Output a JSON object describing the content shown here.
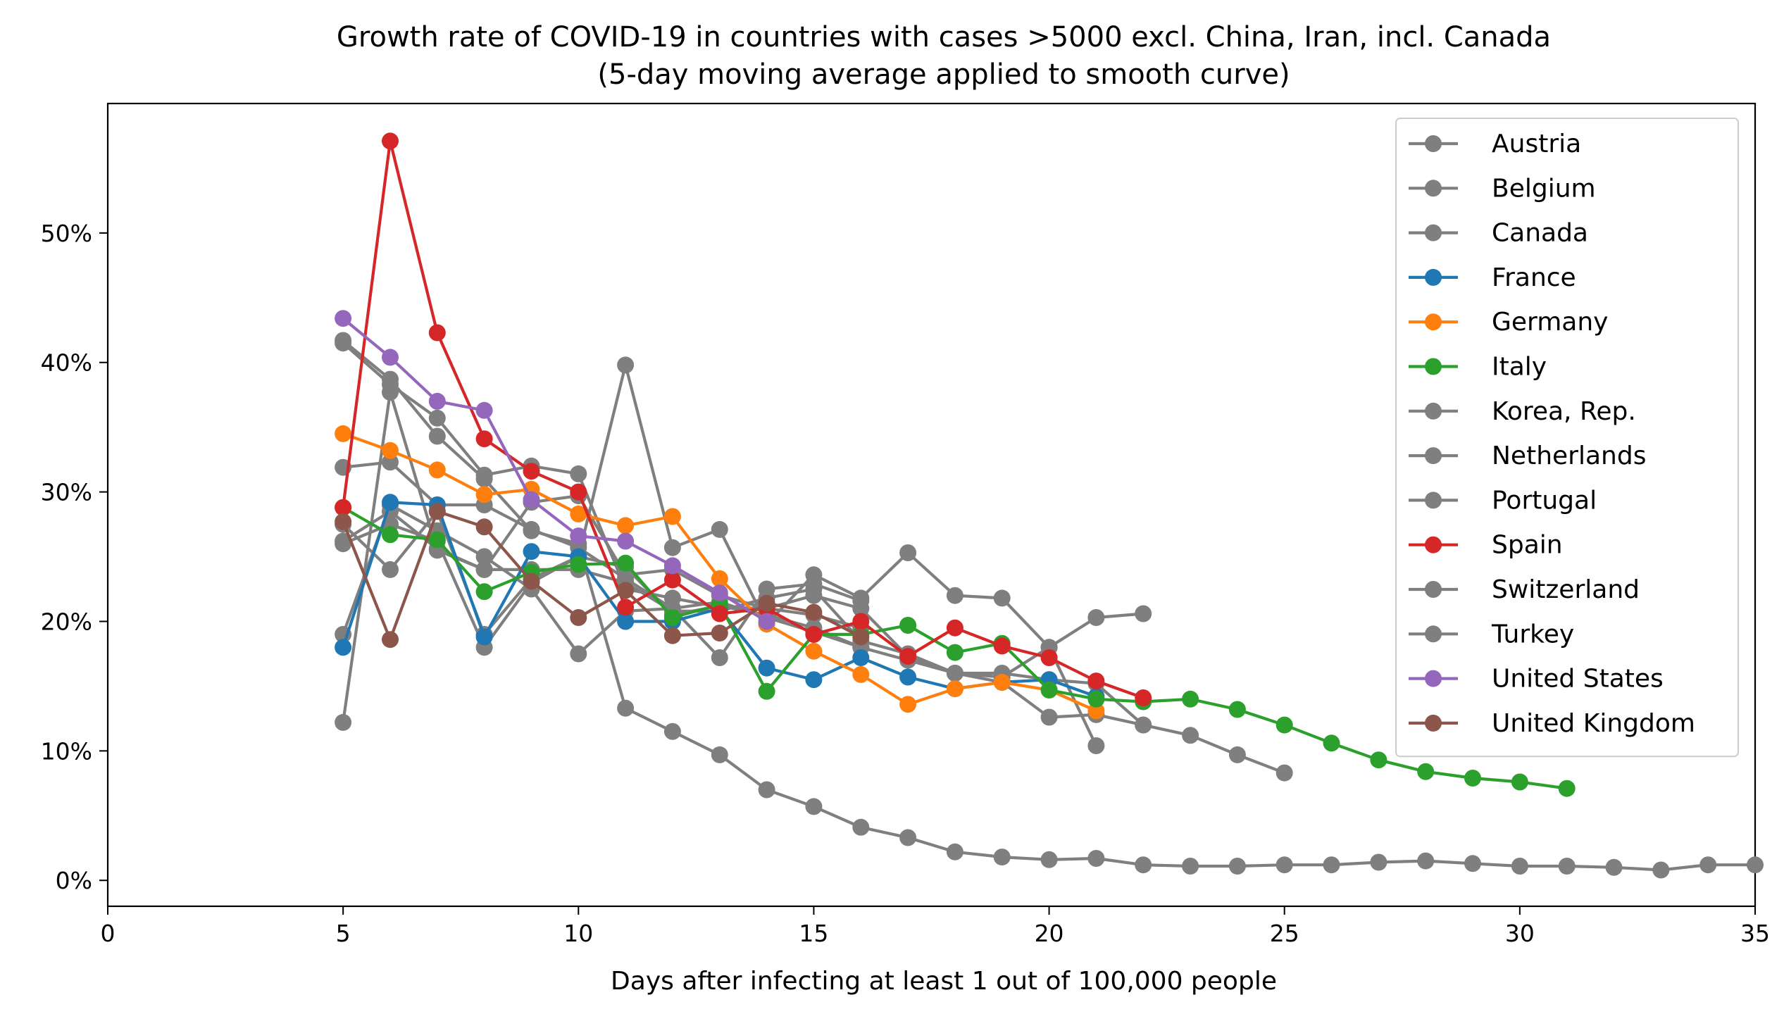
{
  "chart_data": {
    "type": "line",
    "title_line1": "Growth rate of COVID-19 in countries with cases >5000 excl. China, Iran, incl. Canada",
    "title_line2": "(5-day moving average applied to smooth curve)",
    "xlabel": "Days after infecting at least 1 out of 100,000 people",
    "ylabel": "",
    "xlim": [
      0,
      35
    ],
    "ylim": [
      -0.02,
      0.6
    ],
    "x_ticks": [
      0,
      5,
      10,
      15,
      20,
      25,
      30,
      35
    ],
    "x_tick_labels": [
      "0",
      "5",
      "10",
      "15",
      "20",
      "25",
      "30",
      "35"
    ],
    "y_ticks": [
      0,
      0.1,
      0.2,
      0.3,
      0.4,
      0.5
    ],
    "y_tick_labels": [
      "0%",
      "10%",
      "20%",
      "30%",
      "40%",
      "50%"
    ],
    "grid": false,
    "legend_position": "top-right",
    "series": [
      {
        "name": "Austria",
        "color": "#7f7f7f",
        "x": [
          5,
          6,
          7,
          8,
          9,
          10,
          11,
          12,
          13,
          14,
          15,
          16
        ],
        "y": [
          0.19,
          0.29,
          0.27,
          0.25,
          0.225,
          0.175,
          0.208,
          0.21,
          0.172,
          0.225,
          0.229,
          0.216
        ]
      },
      {
        "name": "Belgium",
        "color": "#7f7f7f",
        "x": [
          5,
          6,
          7,
          8,
          9,
          10,
          11,
          12,
          13,
          14,
          15,
          16,
          17,
          18,
          19,
          20,
          21
        ],
        "y": [
          0.26,
          0.275,
          0.262,
          0.18,
          0.23,
          0.25,
          0.398,
          0.257,
          0.271,
          0.198,
          0.236,
          0.218,
          0.253,
          0.22,
          0.218,
          0.18,
          0.104
        ]
      },
      {
        "name": "Canada",
        "color": "#7f7f7f",
        "x": [
          5,
          6,
          7,
          8,
          9,
          10,
          11,
          12,
          13,
          14,
          15,
          16,
          17,
          18,
          19,
          20,
          21,
          22
        ],
        "y": [
          0.122,
          0.377,
          0.255,
          0.24,
          0.24,
          0.24,
          0.23,
          0.208,
          0.208,
          0.218,
          0.225,
          0.185,
          0.175,
          0.16,
          0.16,
          0.155,
          0.152,
          0.12
        ]
      },
      {
        "name": "France",
        "color": "#1f77b4",
        "x": [
          5,
          6,
          7,
          8,
          9,
          10,
          11,
          12,
          13,
          14,
          15,
          16,
          17,
          18,
          19,
          20,
          21
        ],
        "y": [
          0.18,
          0.292,
          0.29,
          0.188,
          0.254,
          0.25,
          0.2,
          0.2,
          0.21,
          0.164,
          0.155,
          0.172,
          0.157,
          0.148,
          0.153,
          0.155,
          0.142
        ]
      },
      {
        "name": "Germany",
        "color": "#ff7f0e",
        "x": [
          5,
          6,
          7,
          8,
          9,
          10,
          11,
          12,
          13,
          14,
          15,
          16,
          17,
          18,
          19,
          20,
          21
        ],
        "y": [
          0.345,
          0.332,
          0.317,
          0.298,
          0.302,
          0.283,
          0.274,
          0.281,
          0.233,
          0.198,
          0.177,
          0.159,
          0.136,
          0.148,
          0.153,
          0.147,
          0.131
        ]
      },
      {
        "name": "Italy",
        "color": "#2ca02c",
        "x": [
          5,
          6,
          7,
          8,
          9,
          10,
          11,
          12,
          13,
          14,
          15,
          16,
          17,
          18,
          19,
          20,
          21,
          22,
          23,
          24,
          25,
          26,
          27,
          28,
          29,
          30,
          31
        ],
        "y": [
          0.288,
          0.267,
          0.263,
          0.223,
          0.238,
          0.244,
          0.245,
          0.203,
          0.213,
          0.146,
          0.19,
          0.19,
          0.197,
          0.176,
          0.183,
          0.147,
          0.14,
          0.138,
          0.14,
          0.132,
          0.12,
          0.106,
          0.093,
          0.084,
          0.079,
          0.076,
          0.071
        ]
      },
      {
        "name": "Korea, Rep.",
        "color": "#7f7f7f",
        "x": [
          5,
          6,
          7,
          8,
          9,
          10,
          11,
          12,
          13,
          14,
          15,
          16,
          17,
          18,
          19,
          20,
          21,
          22,
          23,
          24,
          25,
          26,
          27,
          28,
          29,
          30,
          31,
          32,
          33,
          34,
          35
        ],
        "y": [
          0.417,
          0.387,
          0.343,
          0.31,
          0.27,
          0.26,
          0.133,
          0.115,
          0.097,
          0.07,
          0.057,
          0.041,
          0.033,
          0.022,
          0.018,
          0.016,
          0.017,
          0.012,
          0.011,
          0.011,
          0.012,
          0.012,
          0.014,
          0.015,
          0.013,
          0.011,
          0.011,
          0.01,
          0.008,
          0.012,
          0.012
        ]
      },
      {
        "name": "Netherlands",
        "color": "#7f7f7f",
        "x": [
          5,
          6,
          7,
          8,
          9,
          10,
          11,
          12,
          13,
          14,
          15,
          16,
          17,
          18,
          19,
          20,
          21,
          22
        ],
        "y": [
          0.415,
          0.383,
          0.357,
          0.313,
          0.32,
          0.314,
          0.225,
          0.218,
          0.211,
          0.21,
          0.22,
          0.21,
          0.173,
          0.16,
          0.157,
          0.18,
          0.203,
          0.206
        ]
      },
      {
        "name": "Portugal",
        "color": "#7f7f7f",
        "x": [
          5,
          6,
          7,
          8,
          9,
          10,
          11,
          12,
          13,
          14,
          15,
          16,
          17,
          18,
          19,
          20,
          21,
          22,
          23,
          24,
          25
        ],
        "y": [
          0.319,
          0.323,
          0.29,
          0.29,
          0.271,
          0.257,
          0.233,
          0.21,
          0.215,
          0.203,
          0.192,
          0.18,
          0.17,
          0.16,
          0.153,
          0.126,
          0.128,
          0.12,
          0.112,
          0.097,
          0.083
        ]
      },
      {
        "name": "Spain",
        "color": "#d62728",
        "x": [
          5,
          6,
          7,
          8,
          9,
          10,
          11,
          12,
          13,
          14,
          15,
          16,
          17,
          18,
          19,
          20,
          21,
          22
        ],
        "y": [
          0.288,
          0.571,
          0.423,
          0.341,
          0.316,
          0.3,
          0.211,
          0.232,
          0.206,
          0.21,
          0.19,
          0.2,
          0.173,
          0.195,
          0.181,
          0.172,
          0.154,
          0.141
        ]
      },
      {
        "name": "Switzerland",
        "color": "#7f7f7f",
        "x": [
          5,
          6,
          7,
          8,
          9,
          10,
          11,
          12,
          13,
          14,
          15,
          16
        ],
        "y": [
          0.275,
          0.24,
          0.285,
          0.19,
          0.233,
          0.25,
          0.242,
          0.205,
          0.212,
          0.205,
          0.195,
          0.18
        ]
      },
      {
        "name": "Turkey",
        "color": "#7f7f7f",
        "x": [
          5,
          6,
          7,
          8,
          9,
          10,
          11,
          12,
          13,
          14,
          15,
          16
        ],
        "y": [
          0.262,
          0.285,
          0.256,
          0.24,
          0.292,
          0.297,
          0.236,
          0.24,
          0.22,
          0.21,
          0.205,
          0.195
        ]
      },
      {
        "name": "United States",
        "color": "#9467bd",
        "x": [
          5,
          6,
          7,
          8,
          9,
          10,
          11,
          12,
          13,
          14
        ],
        "y": [
          0.434,
          0.404,
          0.37,
          0.363,
          0.294,
          0.266,
          0.262,
          0.243,
          0.222,
          0.2
        ]
      },
      {
        "name": "United Kingdom",
        "color": "#8c564b",
        "x": [
          5,
          6,
          7,
          8,
          9,
          10,
          11,
          12,
          13,
          14,
          15,
          16
        ],
        "y": [
          0.277,
          0.186,
          0.285,
          0.273,
          0.231,
          0.203,
          0.224,
          0.189,
          0.191,
          0.214,
          0.207,
          0.188
        ]
      }
    ]
  }
}
